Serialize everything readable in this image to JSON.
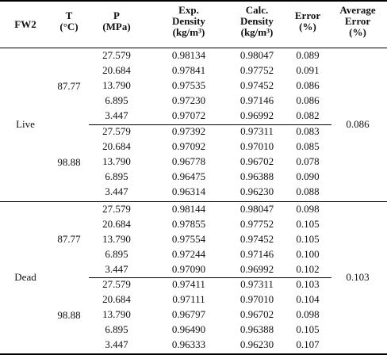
{
  "headers": {
    "fluid": "FW2",
    "temp_line1": "T",
    "temp_line2": "(°C)",
    "press_line1": "P",
    "press_line2": "(MPa)",
    "exp_line1": "Exp.",
    "exp_line2": "Density",
    "exp_line3": "(kg/m³)",
    "calc_line1": "Calc.",
    "calc_line2": "Density",
    "calc_line3": "(kg/m³)",
    "err_line1": "Error",
    "err_line2": "(%)",
    "avg_line1": "Average",
    "avg_line2": "Error",
    "avg_line3": "(%)"
  },
  "groups": [
    {
      "fluid": "Live",
      "average_error": "0.086",
      "blocks": [
        {
          "temperature": "87.77",
          "rows": [
            {
              "p": "27.579",
              "exp": "0.98134",
              "calc": "0.98047",
              "err": "0.089"
            },
            {
              "p": "20.684",
              "exp": "0.97841",
              "calc": "0.97752",
              "err": "0.091"
            },
            {
              "p": "13.790",
              "exp": "0.97535",
              "calc": "0.97452",
              "err": "0.086"
            },
            {
              "p": "6.895",
              "exp": "0.97230",
              "calc": "0.97146",
              "err": "0.086"
            },
            {
              "p": "3.447",
              "exp": "0.97072",
              "calc": "0.96992",
              "err": "0.082"
            }
          ]
        },
        {
          "temperature": "98.88",
          "rows": [
            {
              "p": "27.579",
              "exp": "0.97392",
              "calc": "0.97311",
              "err": "0.083"
            },
            {
              "p": "20.684",
              "exp": "0.97092",
              "calc": "0.97010",
              "err": "0.085"
            },
            {
              "p": "13.790",
              "exp": "0.96778",
              "calc": "0.96702",
              "err": "0.078"
            },
            {
              "p": "6.895",
              "exp": "0.96475",
              "calc": "0.96388",
              "err": "0.090"
            },
            {
              "p": "3.447",
              "exp": "0.96314",
              "calc": "0.96230",
              "err": "0.088"
            }
          ]
        }
      ]
    },
    {
      "fluid": "Dead",
      "average_error": "0.103",
      "blocks": [
        {
          "temperature": "87.77",
          "rows": [
            {
              "p": "27.579",
              "exp": "0.98144",
              "calc": "0.98047",
              "err": "0.098"
            },
            {
              "p": "20.684",
              "exp": "0.97855",
              "calc": "0.97752",
              "err": "0.105"
            },
            {
              "p": "13.790",
              "exp": "0.97554",
              "calc": "0.97452",
              "err": "0.105"
            },
            {
              "p": "6.895",
              "exp": "0.97244",
              "calc": "0.97146",
              "err": "0.100"
            },
            {
              "p": "3.447",
              "exp": "0.97090",
              "calc": "0.96992",
              "err": "0.102"
            }
          ]
        },
        {
          "temperature": "98.88",
          "rows": [
            {
              "p": "27.579",
              "exp": "0.97411",
              "calc": "0.97311",
              "err": "0.103"
            },
            {
              "p": "20.684",
              "exp": "0.97111",
              "calc": "0.97010",
              "err": "0.104"
            },
            {
              "p": "13.790",
              "exp": "0.96797",
              "calc": "0.96702",
              "err": "0.098"
            },
            {
              "p": "6.895",
              "exp": "0.96490",
              "calc": "0.96388",
              "err": "0.105"
            },
            {
              "p": "3.447",
              "exp": "0.96333",
              "calc": "0.96230",
              "err": "0.107"
            }
          ]
        }
      ]
    }
  ]
}
